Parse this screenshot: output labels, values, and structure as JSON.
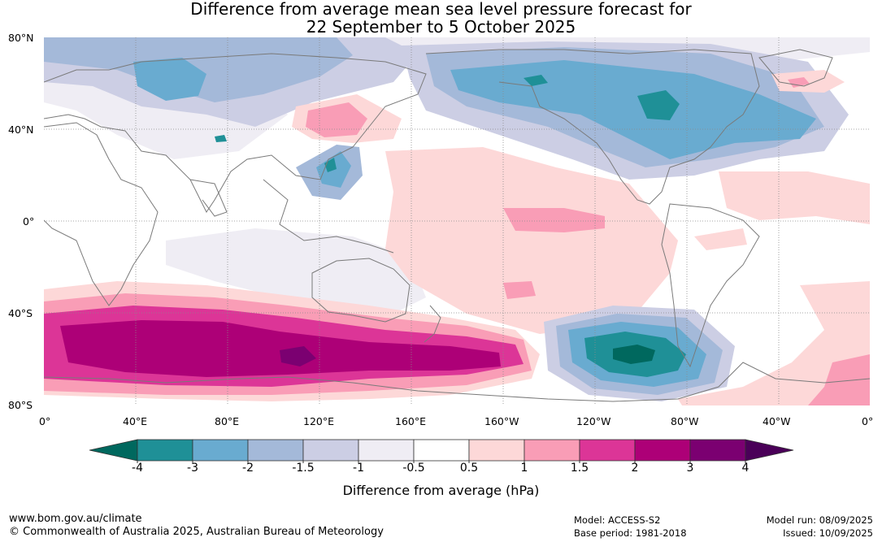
{
  "title": {
    "line1": "Difference from average mean sea level pressure forecast for",
    "line2": "22 September to 5 October 2025"
  },
  "map": {
    "lat_labels": [
      "80°N",
      "40°N",
      "0°",
      "40°S",
      "80°S"
    ],
    "lon_labels": [
      "0°",
      "40°E",
      "80°E",
      "120°E",
      "160°E",
      "160°W",
      "120°W",
      "80°W",
      "40°W",
      "0°"
    ],
    "features": [
      {
        "name": "north-pacific-low-anomaly",
        "value_class": "-3 to -2"
      },
      {
        "name": "north-america-low-anomaly",
        "value_class": "-3 to -2"
      },
      {
        "name": "siberia-low-anomaly",
        "value_class": "-2 to -1.5"
      },
      {
        "name": "japan-sea-low-anomaly",
        "value_class": "-3 to -2"
      },
      {
        "name": "manchuria-high-anomaly",
        "value_class": "1 to 1.5"
      },
      {
        "name": "southern-ocean-high-belt",
        "value_class": "2 to 4"
      },
      {
        "name": "southeast-pacific-low-anomaly",
        "value_class": "-4 to -3"
      },
      {
        "name": "central-pacific-high-anomaly",
        "value_class": "0.5 to 1.5"
      }
    ]
  },
  "colorbar": {
    "tick_labels": [
      "-4",
      "-3",
      "-2",
      "-1.5",
      "-1",
      "-0.5",
      "0.5",
      "1",
      "1.5",
      "2",
      "3",
      "4"
    ],
    "colors": [
      "#00685e",
      "#1f9097",
      "#69abd0",
      "#a4b9d9",
      "#cccee4",
      "#efedf4",
      "#ffffff",
      "#fdd8d8",
      "#f99db6",
      "#dc3597",
      "#ad0077",
      "#7b0071",
      "#4a0058"
    ],
    "label": "Difference from average (hPa)"
  },
  "colors": {
    "coastline": "#7a7a7a",
    "grid": "#8a8a8a"
  },
  "footer": {
    "website": "www.bom.gov.au/climate",
    "copyright": "© Commonwealth of Australia 2025, Australian Bureau of Meteorology",
    "model": "Model: ACCESS-S2",
    "base_period": "Base period: 1981-2018",
    "model_run": "Model run: 08/09/2025",
    "issued": "Issued: 10/09/2025"
  }
}
